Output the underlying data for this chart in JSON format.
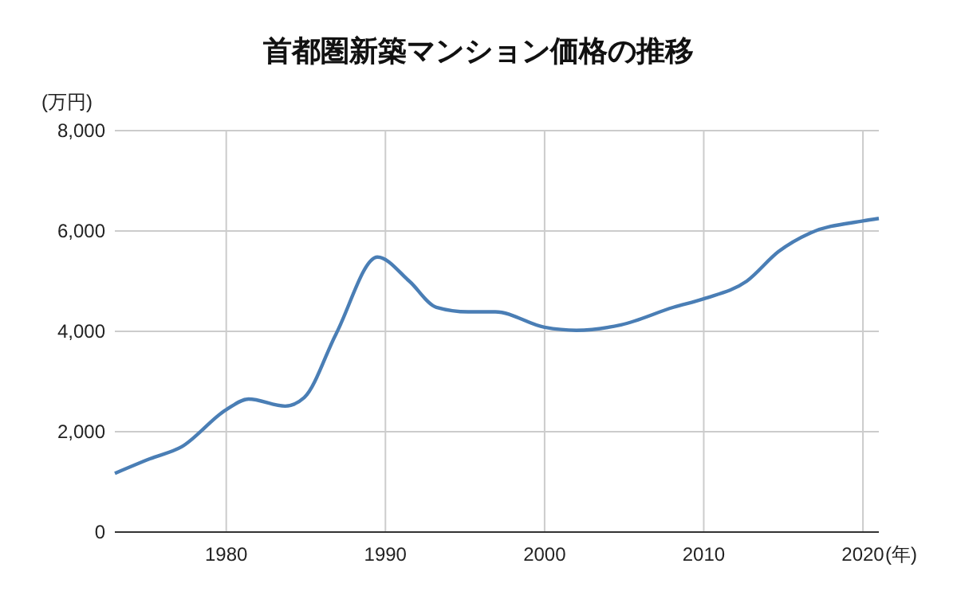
{
  "chart_data": {
    "type": "line",
    "title": "首都圏新築マンション価格の推移",
    "ylabel": "(万円)",
    "xlabel": "(年)",
    "x": [
      1973,
      1975.2,
      1977.2,
      1980,
      1981.4,
      1983.7,
      1984.9,
      1986.9,
      1989.5,
      1991.5,
      1993.2,
      1995.2,
      1996.9,
      2000,
      2002,
      2004.8,
      2008.1,
      2010,
      2012.7,
      2014.7,
      2016.7,
      2020,
      2021
    ],
    "series": [
      {
        "color": "#4a7eb5",
        "values": [
          1170,
          1460,
          1700,
          2440,
          2650,
          2510,
          2680,
          3950,
          5480,
          5000,
          4480,
          4390,
          4390,
          4080,
          4020,
          4130,
          4480,
          4650,
          5000,
          5590,
          5960,
          6200,
          6250
        ]
      }
    ],
    "xlim": [
      1973,
      2021
    ],
    "xticks": [
      1980,
      1990,
      2000,
      2010,
      2020
    ],
    "ylim": [
      0,
      8000
    ],
    "yticks": [
      {
        "value": 0,
        "label": "0"
      },
      {
        "value": 2000,
        "label": "2,000"
      },
      {
        "value": 4000,
        "label": "4,000"
      },
      {
        "value": 6000,
        "label": "6,000"
      },
      {
        "value": 8000,
        "label": "8,000"
      }
    ],
    "grid": true,
    "marker": "none",
    "line_style": "solid"
  }
}
